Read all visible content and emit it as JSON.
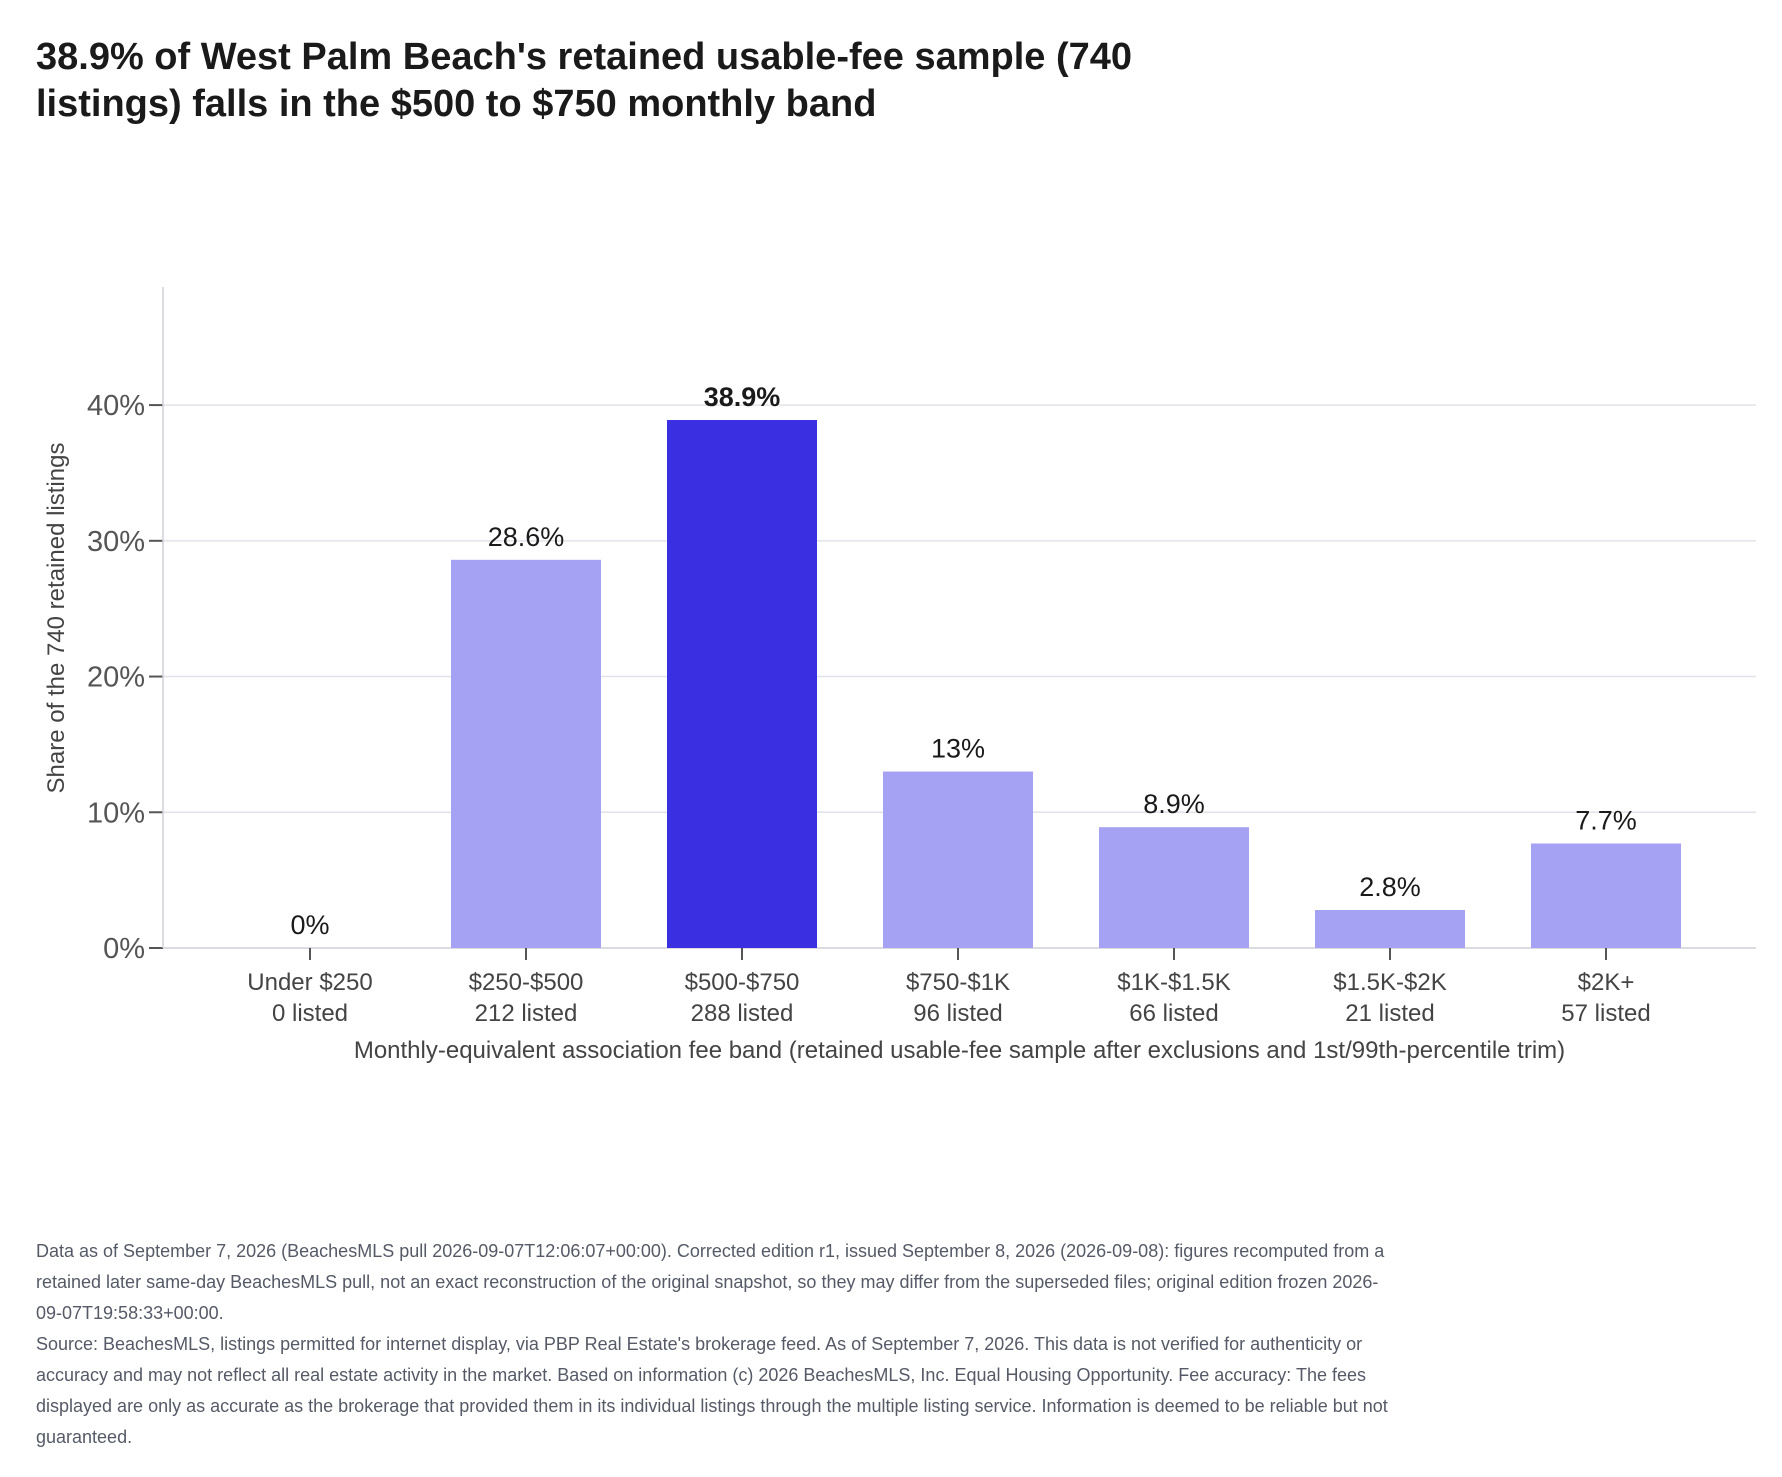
{
  "chart_data": {
    "type": "bar",
    "title": "38.9% of West Palm Beach's retained usable-fee sample (740 listings) falls in the $500 to $750 monthly band",
    "xlabel": "Monthly-equivalent association fee band (retained usable-fee sample after exclusions and 1st/99th-percentile trim)",
    "ylabel": "Share of the 740 retained listings",
    "categories": [
      "Under $250",
      "$250-$500",
      "$500-$750",
      "$750-$1K",
      "$1K-$1.5K",
      "$1.5K-$2K",
      "$2K+"
    ],
    "counts": [
      "0 listed",
      "212 listed",
      "288 listed",
      "96 listed",
      "66 listed",
      "21 listed",
      "57 listed"
    ],
    "values": [
      0,
      28.6,
      38.9,
      13,
      8.9,
      2.8,
      7.7
    ],
    "data_labels": [
      "0%",
      "28.6%",
      "38.9%",
      "13%",
      "8.9%",
      "2.8%",
      "7.7%"
    ],
    "highlight_index": 2,
    "ylim": [
      0,
      48.7
    ],
    "yticks": [
      0,
      10,
      20,
      30,
      40
    ],
    "ytick_labels": [
      "0%",
      "10%",
      "20%",
      "30%",
      "40%"
    ],
    "grid": true,
    "colors": {
      "bar": "#a5a1f3",
      "highlight": "#3a30e2",
      "grid": "#e2e2ea",
      "axis": "#cfcfd8"
    }
  },
  "footnote": {
    "edition": "Data as of September 7, 2026 (BeachesMLS pull 2026-09-07T12:06:07+00:00). Corrected edition r1, issued September 8, 2026 (2026-09-08): figures recomputed from a retained later same-day BeachesMLS pull, not an exact reconstruction of the original snapshot, so they may differ from the superseded files; original edition frozen 2026-09-07T19:58:33+00:00.",
    "source": "Source: BeachesMLS, listings permitted for internet display, via PBP Real Estate's brokerage feed. As of September 7, 2026. This data is not verified for authenticity or accuracy and may not reflect all real estate activity in the market. Based on information (c) 2026 BeachesMLS, Inc. Equal Housing Opportunity. Fee accuracy: The fees displayed are only as accurate as the brokerage that provided them in its individual listings through the multiple listing service. Information is deemed to be reliable but not guaranteed."
  }
}
